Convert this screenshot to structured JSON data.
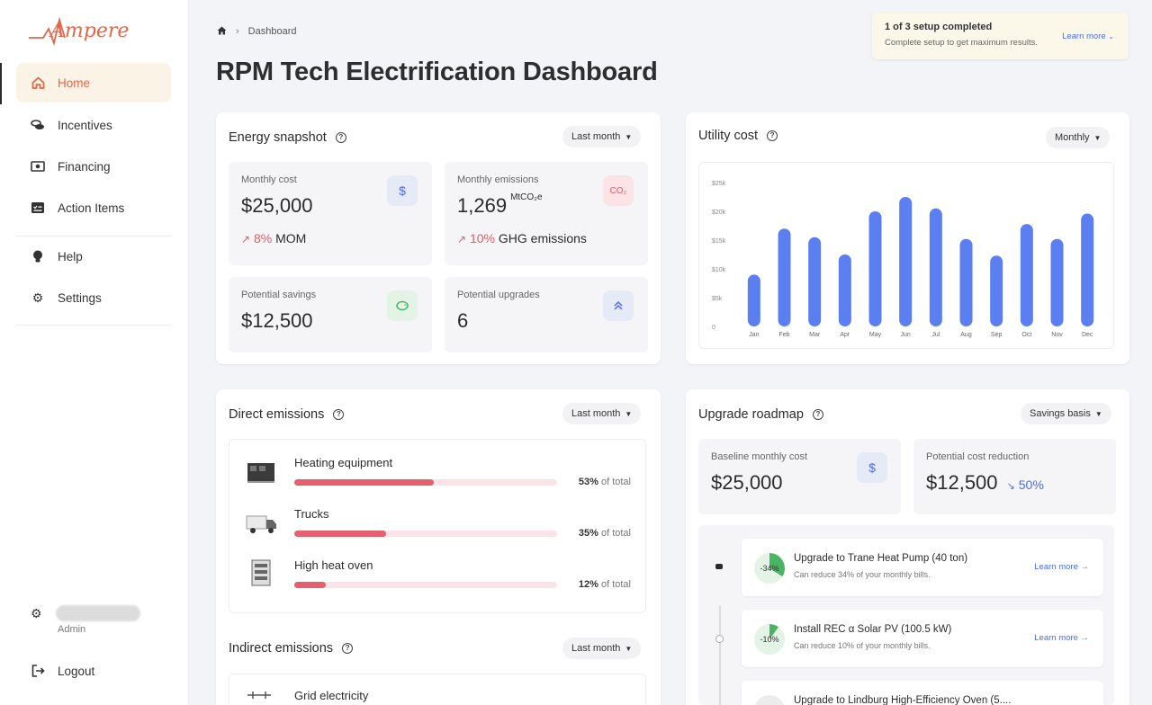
{
  "app": {
    "logo_text": "Ampere",
    "brand_color": "#e0674a",
    "accent_color": "#4a6cf7"
  },
  "sidebar": {
    "items": [
      {
        "label": "Home",
        "icon": "home-icon",
        "active": true
      },
      {
        "label": "Incentives",
        "icon": "coins-icon"
      },
      {
        "label": "Financing",
        "icon": "cash-icon"
      },
      {
        "label": "Action Items",
        "icon": "checklist-icon"
      },
      {
        "label": "Help",
        "icon": "lightbulb-icon"
      },
      {
        "label": "Settings",
        "icon": "gear-icon"
      }
    ],
    "user_role": "Admin",
    "logout_label": "Logout"
  },
  "header": {
    "breadcrumb": "Dashboard",
    "title": "RPM Tech Electrification Dashboard"
  },
  "setup_banner": {
    "title": "1 of 3 setup completed",
    "subtitle": "Complete setup to get maximum results.",
    "link": "Learn more"
  },
  "energy_snapshot": {
    "title": "Energy snapshot",
    "filter": "Last month",
    "tiles": {
      "monthly_cost": {
        "label": "Monthly cost",
        "value": "$25,000",
        "trend_pct": "8%",
        "trend_label": "MOM"
      },
      "monthly_emissions": {
        "label": "Monthly emissions",
        "value": "1,269",
        "unit": "MtCO₂e",
        "trend_pct": "10%",
        "trend_label": "GHG emissions",
        "badge": "CO₂"
      },
      "potential_savings": {
        "label": "Potential savings",
        "value": "$12,500"
      },
      "potential_upgrades": {
        "label": "Potential upgrades",
        "value": "6"
      }
    }
  },
  "utility_cost": {
    "title": "Utility cost",
    "filter": "Monthly"
  },
  "chart_data": {
    "type": "bar",
    "categories": [
      "Jan",
      "Feb",
      "Mar",
      "Apr",
      "May",
      "Jun",
      "Jul",
      "Aug",
      "Sep",
      "Oct",
      "Nov",
      "Dec"
    ],
    "values": [
      9000,
      17000,
      15500,
      12500,
      20000,
      22500,
      20500,
      15200,
      12300,
      17800,
      15200,
      19600
    ],
    "y_ticks": [
      "0",
      "$5k",
      "$10k",
      "$15k",
      "$20k",
      "$25k"
    ],
    "ylim": [
      0,
      25000
    ],
    "bar_color": "#5b7ff0",
    "xlabel": "",
    "ylabel": ""
  },
  "direct_emissions": {
    "title": "Direct emissions",
    "filter": "Last month",
    "of_total": "of total",
    "items": [
      {
        "name": "Heating equipment",
        "pct": "53%",
        "fraction": 0.53
      },
      {
        "name": "Trucks",
        "pct": "35%",
        "fraction": 0.35
      },
      {
        "name": "High heat oven",
        "pct": "12%",
        "fraction": 0.12
      }
    ]
  },
  "indirect_emissions": {
    "title": "Indirect emissions",
    "filter": "Last month",
    "items": [
      {
        "name": "Grid electricity"
      }
    ]
  },
  "upgrade_roadmap": {
    "title": "Upgrade roadmap",
    "filter": "Savings basis",
    "baseline": {
      "label": "Baseline monthly cost",
      "value": "$25,000"
    },
    "reduction": {
      "label": "Potential cost reduction",
      "value": "$12,500",
      "pct": "50%"
    },
    "items": [
      {
        "pct": "-34%",
        "fraction": 0.34,
        "title": "Upgrade to Trane Heat Pump (40 ton)",
        "subtitle": "Can reduce 34% of your monthly bills.",
        "link": "Learn more"
      },
      {
        "pct": "-10%",
        "fraction": 0.1,
        "title": "Install REC α Solar PV (100.5 kW)",
        "subtitle": "Can reduce 10% of your monthly bills.",
        "link": "Learn more"
      },
      {
        "title": "Upgrade to Lindburg High-Efficiency Oven (5...."
      }
    ]
  }
}
